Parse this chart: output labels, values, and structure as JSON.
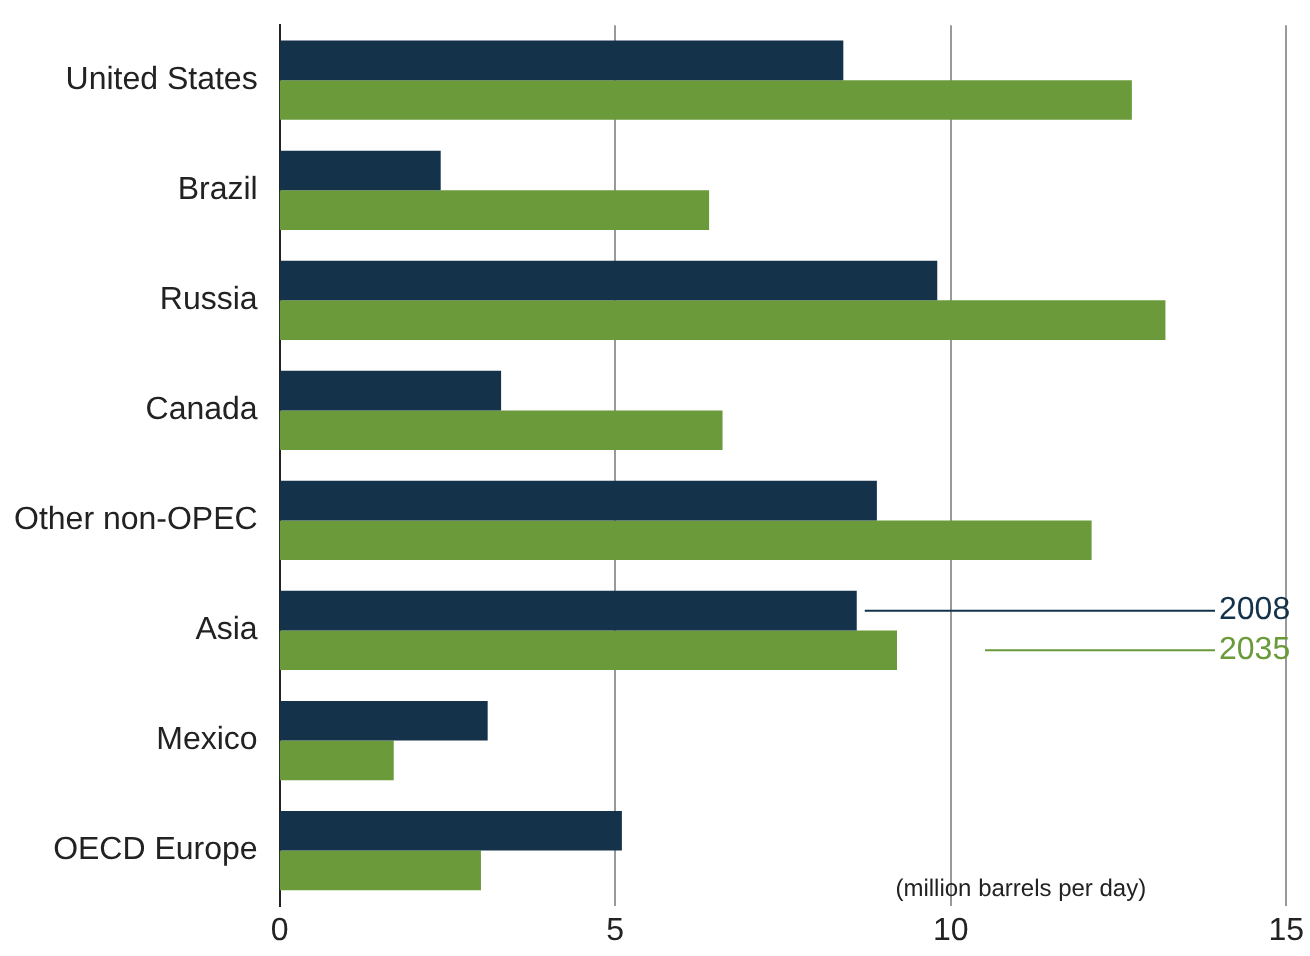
{
  "chart_data": {
    "type": "bar",
    "orientation": "horizontal",
    "categories": [
      "United States",
      "Brazil",
      "Russia",
      "Canada",
      "Other non-OPEC",
      "Asia",
      "Mexico",
      "OECD Europe"
    ],
    "series": [
      {
        "name": "2008",
        "color": "#14334a",
        "values": [
          8.4,
          2.4,
          9.8,
          3.3,
          8.9,
          8.6,
          3.1,
          5.1
        ]
      },
      {
        "name": "2035",
        "color": "#6a9a3a",
        "values": [
          12.7,
          6.4,
          13.2,
          6.6,
          12.1,
          9.2,
          1.7,
          3.0
        ]
      }
    ],
    "xlim": [
      0,
      15
    ],
    "xticks": [
      0,
      5,
      10,
      15
    ],
    "grid": "x",
    "legend": false,
    "annotations": [
      "(million barrels per day)"
    ]
  }
}
